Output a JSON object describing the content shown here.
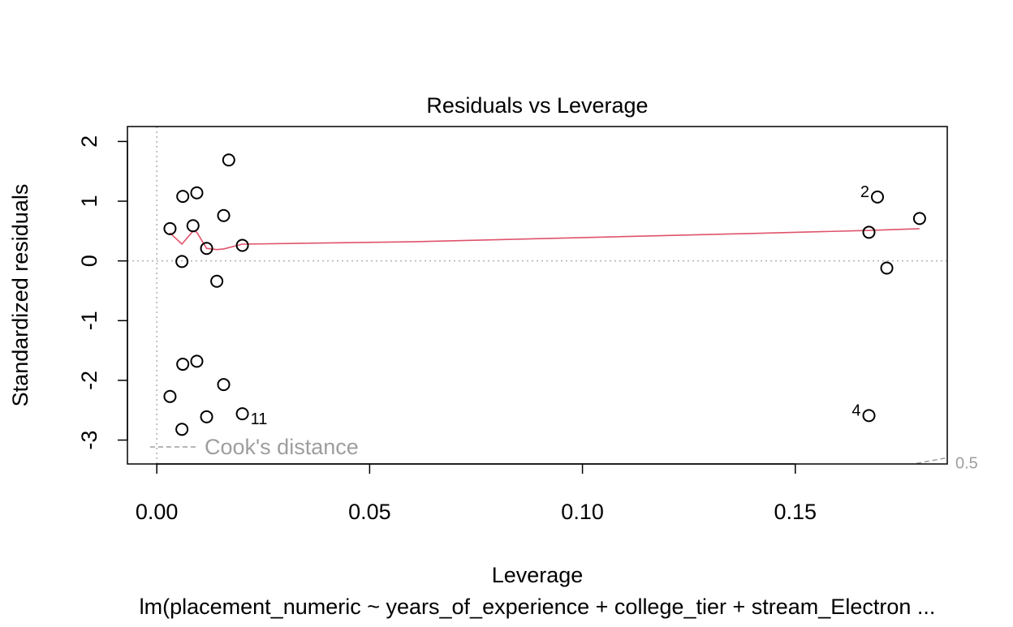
{
  "chart_data": {
    "type": "scatter",
    "title": "Residuals vs Leverage",
    "xlabel": "Leverage",
    "ylabel": "Standardized residuals",
    "caption": "lm(placement_numeric ~ years_of_experience + college_tier + stream_Electron ...",
    "xlim": [
      -0.0069,
      0.1857
    ],
    "ylim": [
      -3.4,
      2.25
    ],
    "x_ticks": [
      0.0,
      0.05,
      0.1,
      0.15
    ],
    "x_tick_labels": [
      "0.00",
      "0.05",
      "0.10",
      "0.15"
    ],
    "y_ticks": [
      -3,
      -2,
      -1,
      0,
      1,
      2
    ],
    "y_tick_labels": [
      "-3",
      "-2",
      "-1",
      "0",
      "1",
      "2"
    ],
    "grid": false,
    "reference_lines": {
      "x": 0,
      "y": 0,
      "style": "dotted"
    },
    "points": [
      {
        "x": 0.0031,
        "y": 0.54
      },
      {
        "x": 0.0031,
        "y": -2.27
      },
      {
        "x": 0.0061,
        "y": 1.08
      },
      {
        "x": 0.0061,
        "y": -1.73
      },
      {
        "x": 0.0059,
        "y": -0.01
      },
      {
        "x": 0.0059,
        "y": -2.82
      },
      {
        "x": 0.0085,
        "y": 0.59
      },
      {
        "x": 0.0094,
        "y": 1.14
      },
      {
        "x": 0.0094,
        "y": -1.68
      },
      {
        "x": 0.0117,
        "y": 0.21
      },
      {
        "x": 0.0117,
        "y": -2.61
      },
      {
        "x": 0.0141,
        "y": -0.34
      },
      {
        "x": 0.0157,
        "y": 0.76
      },
      {
        "x": 0.0157,
        "y": -2.07
      },
      {
        "x": 0.0169,
        "y": 1.69
      },
      {
        "x": 0.0201,
        "y": 0.26
      },
      {
        "x": 0.0201,
        "y": -2.56,
        "label": "11"
      },
      {
        "x": 0.1673,
        "y": 0.48
      },
      {
        "x": 0.1673,
        "y": -2.59,
        "label": "4"
      },
      {
        "x": 0.1693,
        "y": 1.07,
        "label": "2"
      },
      {
        "x": 0.1715,
        "y": -0.12
      },
      {
        "x": 0.1792,
        "y": 0.71
      }
    ],
    "smoother": {
      "color": "#DF536B",
      "x": [
        0.0031,
        0.0059,
        0.0085,
        0.0094,
        0.0117,
        0.0141,
        0.0157,
        0.0201,
        0.06,
        0.1,
        0.14,
        0.1673,
        0.1792
      ],
      "y": [
        0.47,
        0.28,
        0.5,
        0.48,
        0.21,
        0.19,
        0.2,
        0.28,
        0.32,
        0.39,
        0.46,
        0.51,
        0.54
      ]
    },
    "legend": {
      "label": "Cook's distance",
      "position": "bottom-left"
    },
    "cooks_contour": {
      "label": "0.5",
      "y_at_edge": -3.35
    }
  }
}
